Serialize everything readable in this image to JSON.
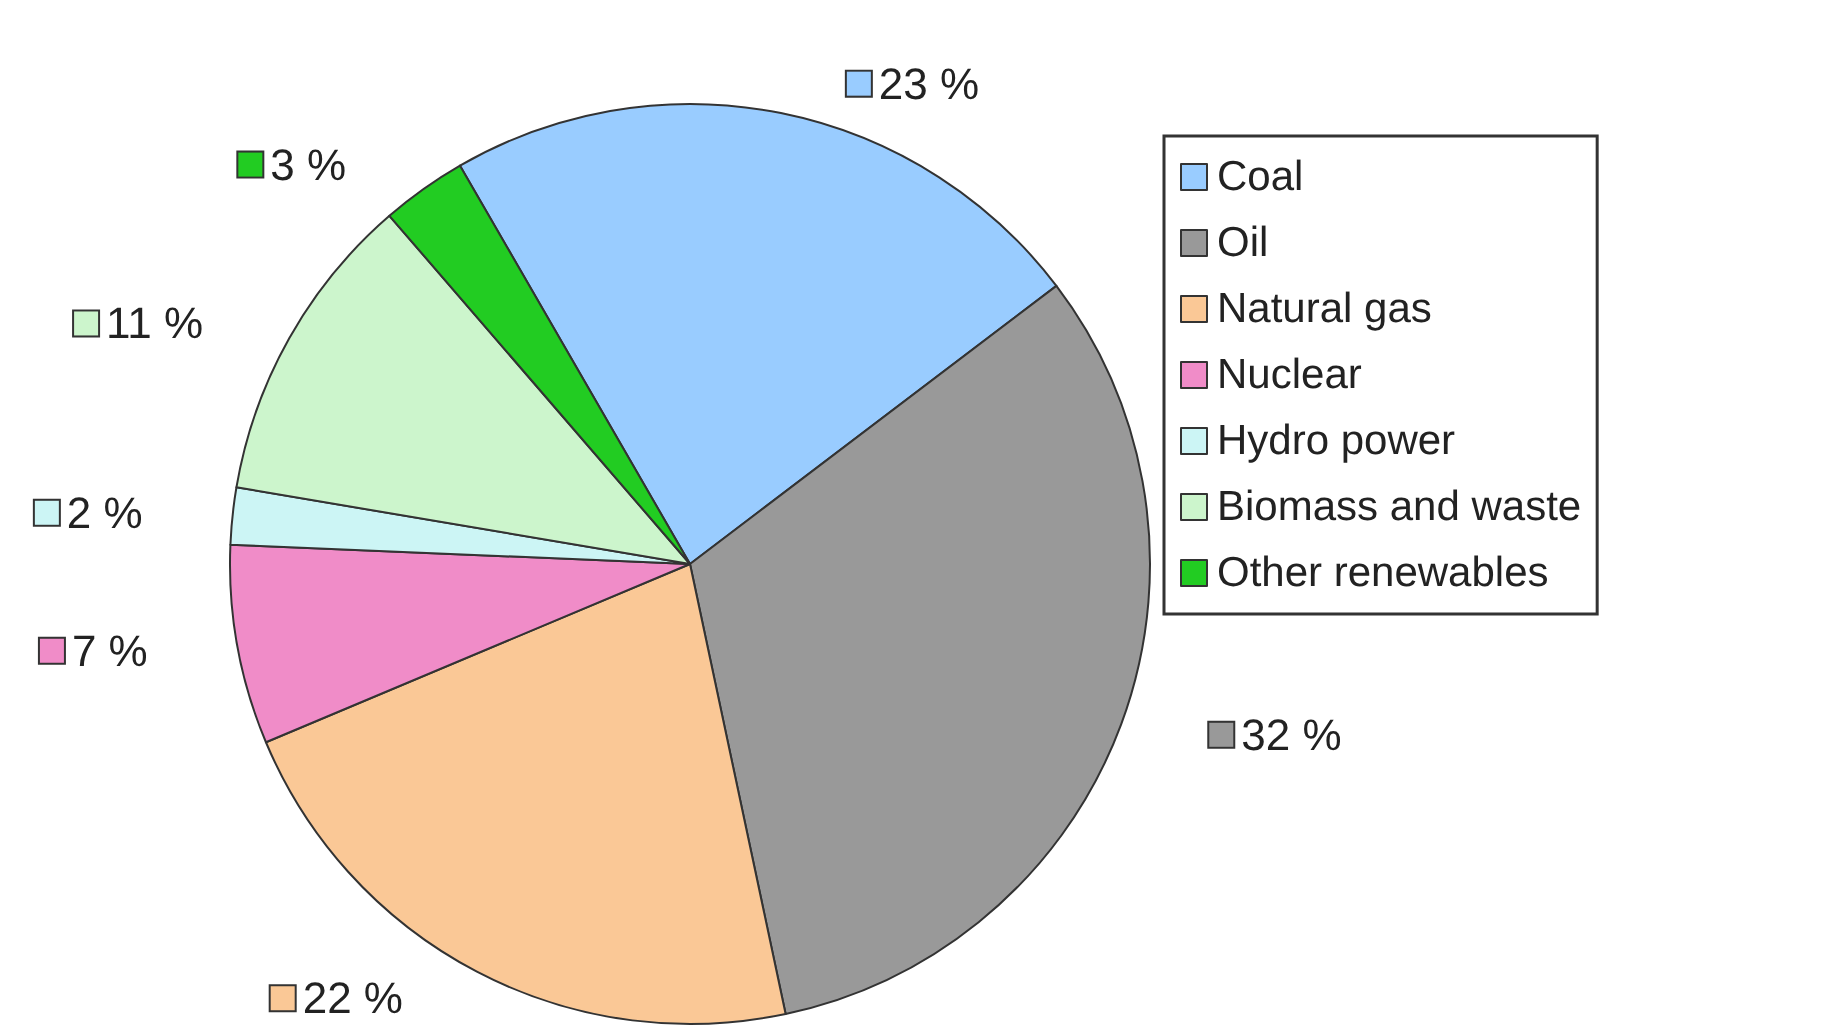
{
  "chart_data": {
    "type": "pie",
    "categories": [
      "Coal",
      "Oil",
      "Natural gas",
      "Nuclear",
      "Hydro power",
      "Biomass and waste",
      "Other renewables"
    ],
    "values": [
      23,
      32,
      22,
      7,
      2,
      11,
      3
    ],
    "value_labels": [
      "23 %",
      "32 %",
      "22 %",
      "7 %",
      "2 %",
      "11 %",
      "3 %"
    ],
    "colors": [
      "#99ccff",
      "#999999",
      "#fac896",
      "#f08cc8",
      "#ccf5f5",
      "#ccf5cc",
      "#22cc22"
    ],
    "legend": "right"
  }
}
